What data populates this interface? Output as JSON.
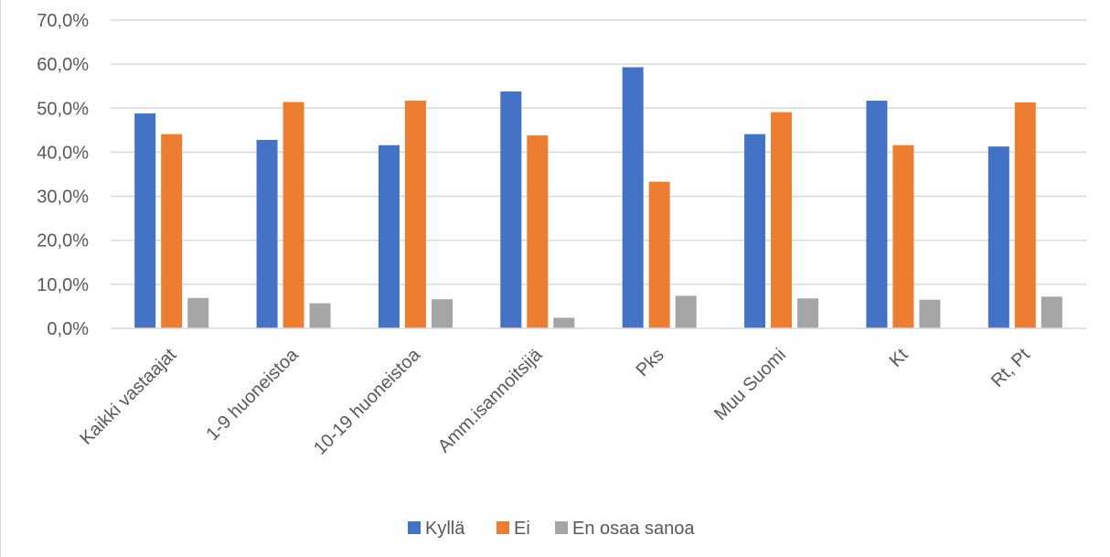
{
  "chart_data": {
    "type": "bar",
    "title": "",
    "xlabel": "",
    "ylabel": "",
    "categories": [
      "Kaikki vastaajat",
      "1-9 huoneistoa",
      "10-19 huoneistoa",
      "Amm.isannoitsijä",
      "Pks",
      "Muu Suomi",
      "Kt",
      "Rt, Pt"
    ],
    "series": [
      {
        "name": "Kyllä",
        "color": "#4472c4",
        "values": [
          48.8,
          42.8,
          41.6,
          53.8,
          59.3,
          44.1,
          51.7,
          41.3
        ]
      },
      {
        "name": "Ei",
        "color": "#ed7d31",
        "values": [
          44.1,
          51.4,
          51.7,
          43.8,
          33.3,
          49.1,
          41.6,
          51.3
        ]
      },
      {
        "name": "En osaa sanoa",
        "color": "#a5a5a5",
        "values": [
          6.9,
          5.7,
          6.6,
          2.4,
          7.4,
          6.8,
          6.5,
          7.2
        ]
      }
    ],
    "ylim": [
      0,
      70
    ],
    "yticks": [
      0,
      10,
      20,
      30,
      40,
      50,
      60,
      70
    ],
    "ytick_labels": [
      "0,0%",
      "10,0%",
      "20,0%",
      "30,0%",
      "40,0%",
      "50,0%",
      "60,0%",
      "70,0%"
    ],
    "grid": true,
    "legend_position": "bottom"
  }
}
